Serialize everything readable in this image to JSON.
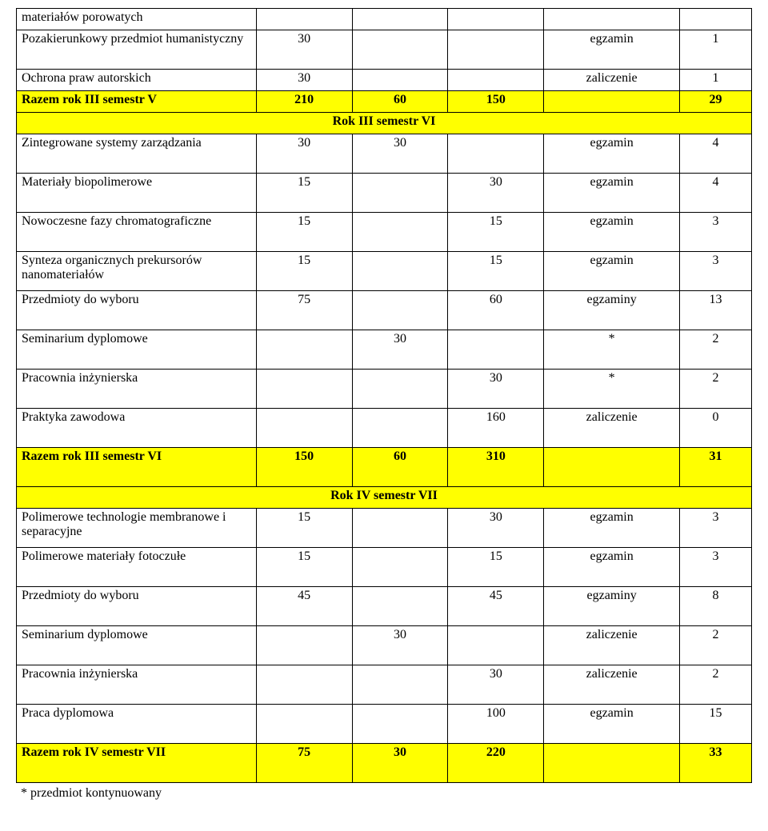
{
  "rows": {
    "r1": {
      "label": "materiałów porowatych"
    },
    "r2": {
      "label": "Pozakierunkowy przedmiot humanistyczny",
      "c2": "30",
      "c5": "egzamin",
      "c6": "1"
    },
    "r3": {
      "label": "Ochrona praw autorskich",
      "c2": "30",
      "c5": "zaliczenie",
      "c6": "1"
    },
    "r4": {
      "label": "Razem rok III semestr V",
      "c2": "210",
      "c3": "60",
      "c4": "150",
      "c6": "29"
    },
    "s1": {
      "label": "Rok III semestr VI"
    },
    "r5": {
      "label": "Zintegrowane systemy zarządzania",
      "c2": "30",
      "c3": "30",
      "c5": "egzamin",
      "c6": "4"
    },
    "r6": {
      "label": "Materiały biopolimerowe",
      "c2": "15",
      "c4": "30",
      "c5": "egzamin",
      "c6": "4"
    },
    "r7": {
      "label": "Nowoczesne fazy chromatograficzne",
      "c2": "15",
      "c4": "15",
      "c5": "egzamin",
      "c6": "3"
    },
    "r8": {
      "label": "Synteza organicznych prekursorów nanomateriałów",
      "c2": "15",
      "c4": "15",
      "c5": "egzamin",
      "c6": "3"
    },
    "r9": {
      "label": "Przedmioty do wyboru",
      "c2": "75",
      "c4": "60",
      "c5": "egzaminy",
      "c6": "13"
    },
    "r10": {
      "label": "Seminarium dyplomowe",
      "c3": "30",
      "c5": "*",
      "c6": "2"
    },
    "r11": {
      "label": "Pracownia inżynierska",
      "c4": "30",
      "c5": "*",
      "c6": "2"
    },
    "r12": {
      "label": "Praktyka zawodowa",
      "c4": "160",
      "c5": "zaliczenie",
      "c6": "0"
    },
    "r13": {
      "label": "Razem rok III semestr VI",
      "c2": "150",
      "c3": "60",
      "c4": "310",
      "c6": "31"
    },
    "s2": {
      "label": "Rok IV semestr VII"
    },
    "r14": {
      "label": "Polimerowe technologie membranowe i separacyjne",
      "c2": "15",
      "c4": "30",
      "c5": "egzamin",
      "c6": "3"
    },
    "r15": {
      "label": "Polimerowe materiały fotoczułe",
      "c2": "15",
      "c4": "15",
      "c5": "egzamin",
      "c6": "3"
    },
    "r16": {
      "label": "Przedmioty do wyboru",
      "c2": "45",
      "c4": "45",
      "c5": "egzaminy",
      "c6": "8"
    },
    "r17": {
      "label": "Seminarium dyplomowe",
      "c3": "30",
      "c5": "zaliczenie",
      "c6": "2"
    },
    "r18": {
      "label": "Pracownia inżynierska",
      "c4": "30",
      "c5": "zaliczenie",
      "c6": "2"
    },
    "r19": {
      "label": "Praca dyplomowa",
      "c4": "100",
      "c5": "egzamin",
      "c6": "15"
    },
    "r20": {
      "label": "Razem rok IV semestr VII",
      "c2": "75",
      "c3": "30",
      "c4": "220",
      "c6": "33"
    }
  },
  "footnote": "* przedmiot kontynuowany"
}
